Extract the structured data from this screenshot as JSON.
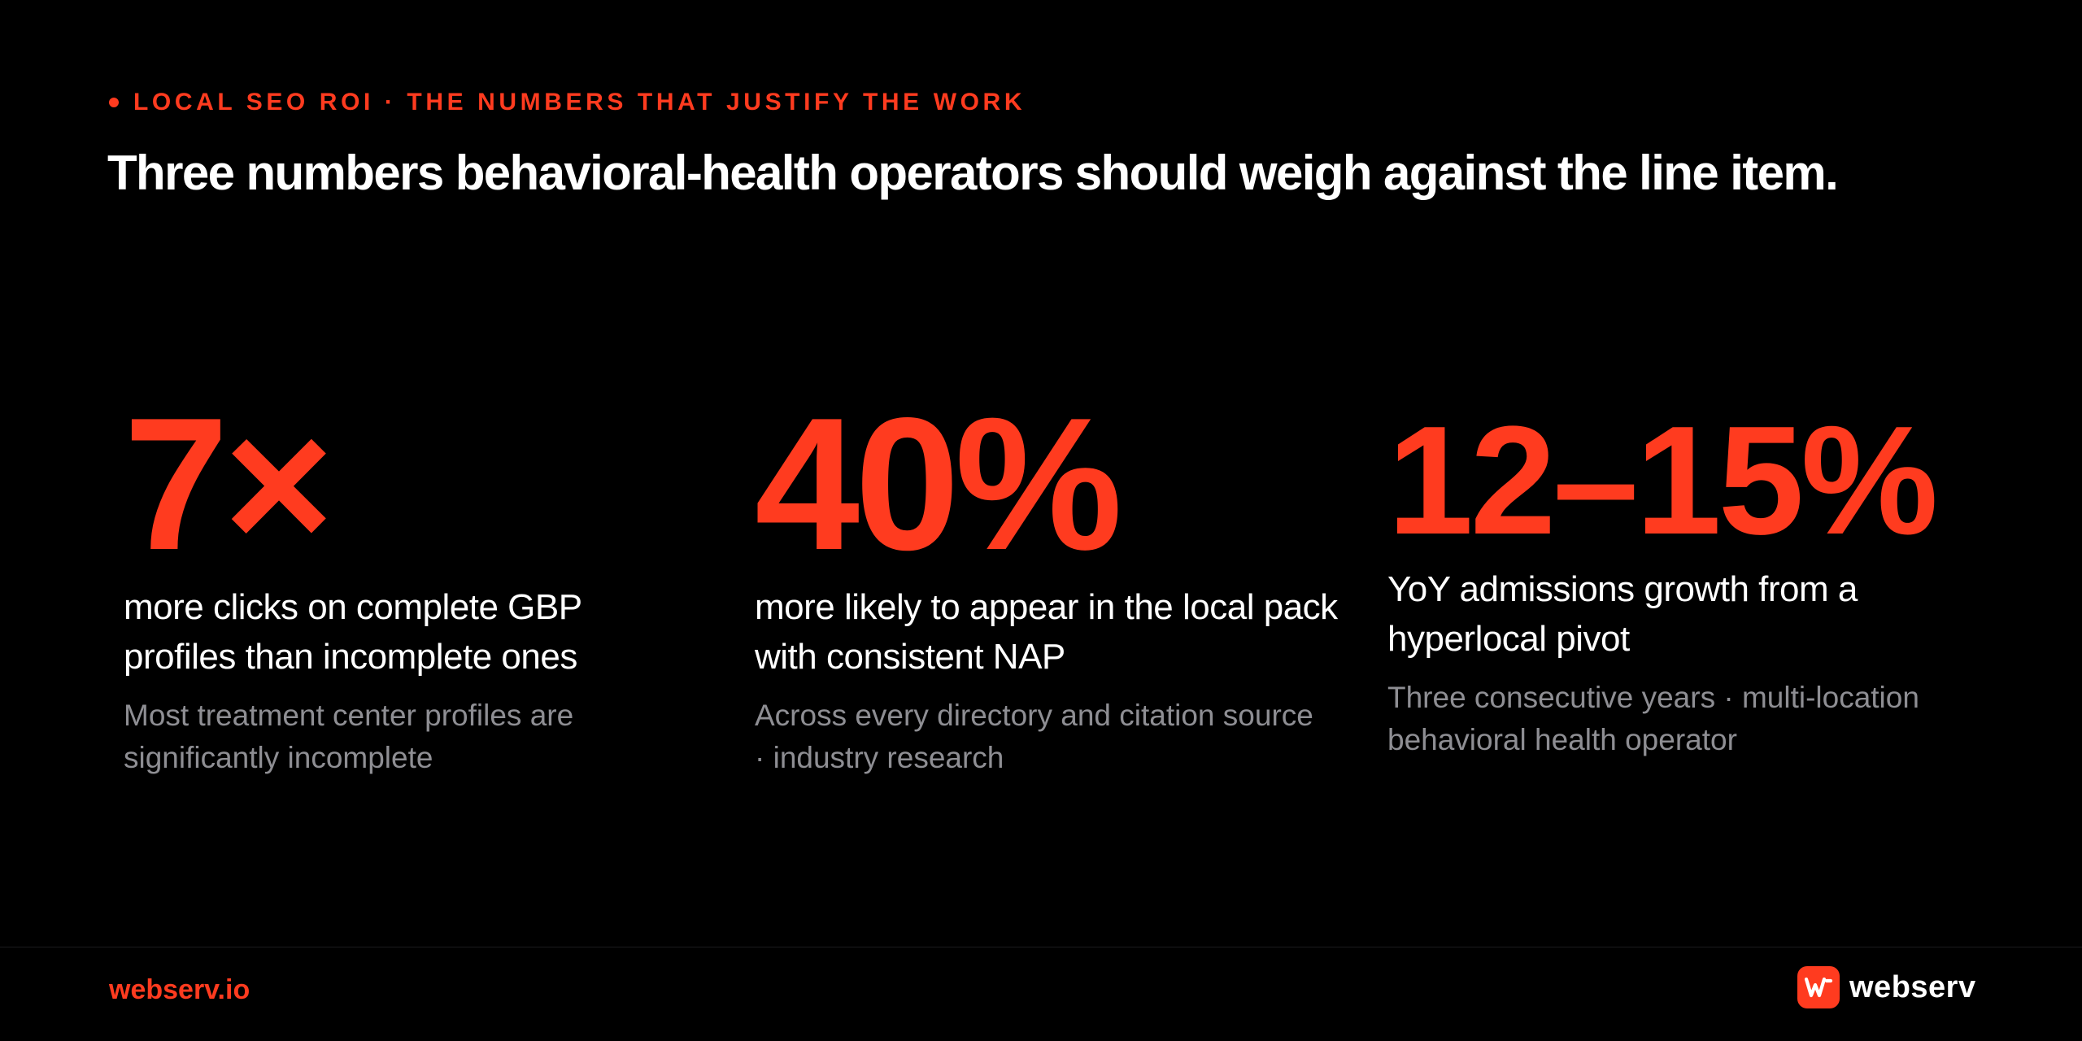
{
  "header": {
    "eyebrow": "LOCAL SEO ROI · THE NUMBERS THAT JUSTIFY THE WORK",
    "headline": "Three numbers behavioral-health operators should weigh against the line item."
  },
  "stats": [
    {
      "value": "7×",
      "primary": "more clicks on complete GBP profiles than incomplete ones",
      "secondary": "Most treatment center profiles are significantly incomplete"
    },
    {
      "value": "40%",
      "primary": "more likely to appear in the local pack with consistent NAP",
      "secondary": "Across every directory and citation source · industry research"
    },
    {
      "value": "12–15%",
      "primary": "YoY admissions growth from a hyperlocal pivot",
      "secondary": "Three consecutive years · multi-location behavioral health operator"
    }
  ],
  "footer": {
    "url": "webserv.io",
    "brand_name": "webserv",
    "brand_icon": "webserv-logo-icon"
  },
  "colors": {
    "background": "#000000",
    "accent": "#ff3b1f",
    "text": "#ffffff",
    "muted": "#8e8e93"
  }
}
